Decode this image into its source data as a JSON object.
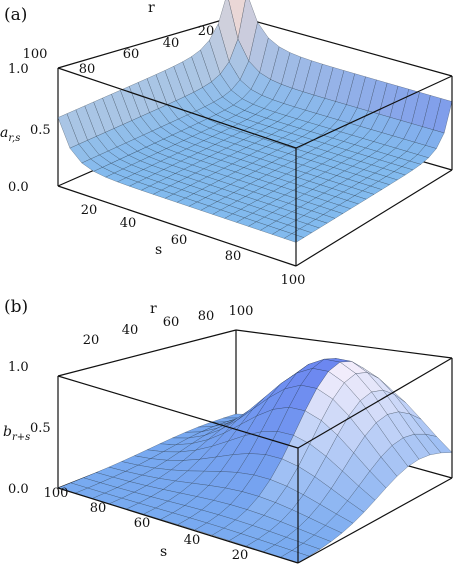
{
  "chart_data": [
    {
      "panel": "(a)",
      "type": "surface",
      "zlabel": "a",
      "zlabel_sub": "r,s",
      "rlabel": "r",
      "slabel": "s",
      "r_ticks": [
        "20",
        "40",
        "60",
        "80",
        "100"
      ],
      "s_ticks": [
        "20",
        "40",
        "60",
        "80",
        "100"
      ],
      "z_ticks": [
        "0.0",
        "0.5",
        "1.0"
      ],
      "r_range": [
        1,
        100
      ],
      "s_range": [
        1,
        100
      ],
      "z_range": [
        0,
        1
      ],
      "surface": "floor near 0.2 with sharp rise toward 1.0 along r=1 and s=1 edges",
      "sample_points": [
        {
          "r": 1,
          "s": 100,
          "z": 0.62
        },
        {
          "r": 100,
          "s": 1,
          "z": 0.58
        },
        {
          "r": 1,
          "s": 1,
          "z": 1.0
        },
        {
          "r": 50,
          "s": 50,
          "z": 0.2
        },
        {
          "r": 100,
          "s": 100,
          "z": 0.2
        }
      ]
    },
    {
      "panel": "(b)",
      "type": "surface",
      "zlabel": "b",
      "zlabel_sub": "r+s",
      "rlabel": "r",
      "slabel": "s",
      "r_ticks": [
        "20",
        "40",
        "60",
        "80",
        "100"
      ],
      "s_ticks": [
        "100",
        "80",
        "60",
        "40",
        "20"
      ],
      "z_ticks": [
        "0.0",
        "0.5",
        "1.0"
      ],
      "r_range": [
        1,
        100
      ],
      "s_range": [
        1,
        100
      ],
      "z_range": [
        0,
        1
      ],
      "surface": "smooth bump peaking at 1.0 near r=100, s=100, falling to 0 at r=s=0",
      "sample_points": [
        {
          "r": 100,
          "s": 100,
          "z": 1.0
        },
        {
          "r": 50,
          "s": 50,
          "z": 0.5
        },
        {
          "r": 1,
          "s": 1,
          "z": 0.0
        },
        {
          "r": 100,
          "s": 1,
          "z": 0.2
        },
        {
          "r": 1,
          "s": 100,
          "z": 0.2
        }
      ]
    }
  ]
}
